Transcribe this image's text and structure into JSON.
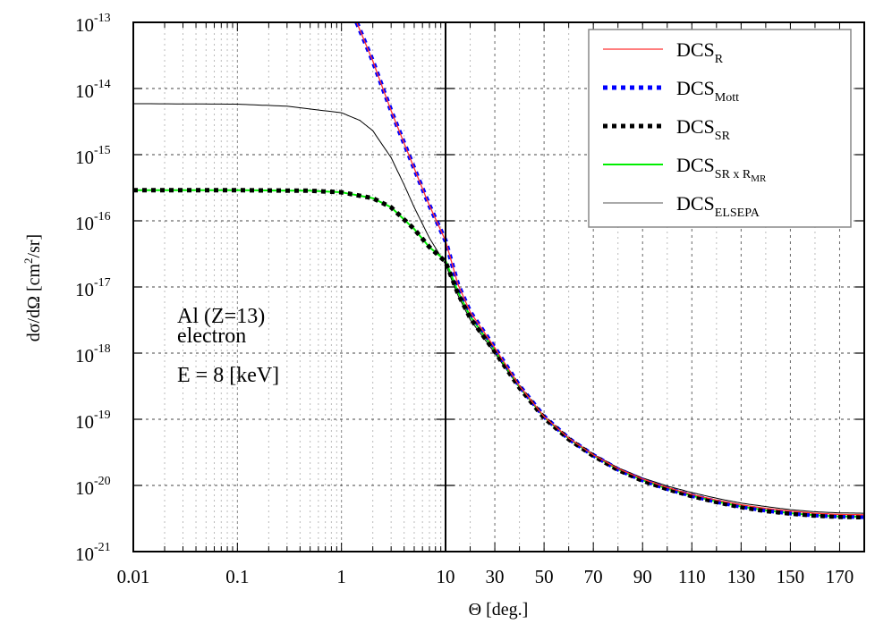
{
  "chart_data": {
    "type": "line",
    "title": "",
    "xlabel": "Θ [deg.]",
    "ylabel": "dσ/dΩ [cm²/sr]",
    "xscale": "log (0.01–10) + linear (10–180)",
    "yscale": "log",
    "xlim": [
      0.01,
      180
    ],
    "ylim": [
      1e-21,
      1e-13
    ],
    "grid": true,
    "legend_position": "upper right",
    "x_tick_labels": [
      "0.01",
      "0.1",
      "1",
      "10",
      "30",
      "50",
      "70",
      "90",
      "110",
      "130",
      "150",
      "170"
    ],
    "y_tick_labels": [
      {
        "base": "10",
        "exp": "-13"
      },
      {
        "base": "10",
        "exp": "-14"
      },
      {
        "base": "10",
        "exp": "-15"
      },
      {
        "base": "10",
        "exp": "-16"
      },
      {
        "base": "10",
        "exp": "-17"
      },
      {
        "base": "10",
        "exp": "-18"
      },
      {
        "base": "10",
        "exp": "-19"
      },
      {
        "base": "10",
        "exp": "-20"
      },
      {
        "base": "10",
        "exp": "-21"
      }
    ],
    "annotations": [
      "Al (Z=13)",
      "electron",
      "E = 8 [keV]"
    ],
    "series": [
      {
        "name": "DCS_R",
        "label_main": "DCS",
        "label_sub": "R",
        "color": "#ff3030",
        "style": "solid",
        "x": [
          1.4,
          2,
          3,
          5,
          7,
          10,
          15,
          20,
          30,
          40,
          50,
          60,
          70,
          80,
          90,
          100,
          110,
          120,
          130,
          140,
          150,
          160,
          170,
          180
        ],
        "values": [
          1e-13,
          2.6e-14,
          4.6e-15,
          6.2e-16,
          1.7e-16,
          5e-17,
          1.1e-17,
          4.2e-18,
          1.2e-18,
          3.2e-19,
          1.1e-19,
          5.2e-20,
          2.9e-20,
          1.8e-20,
          1.25e-20,
          9.3e-21,
          7.3e-21,
          6e-21,
          5.1e-21,
          4.5e-21,
          4.1e-21,
          3.8e-21,
          3.65e-21,
          3.6e-21
        ]
      },
      {
        "name": "DCS_Mott",
        "label_main": "DCS",
        "label_sub": "Mott",
        "color": "#0000ff",
        "style": "dotted",
        "x": [
          1.4,
          2,
          3,
          5,
          7,
          10,
          15,
          20,
          30,
          40,
          50,
          60,
          70,
          80,
          90,
          100,
          110,
          120,
          130,
          140,
          150,
          160,
          170,
          180
        ],
        "values": [
          1e-13,
          2.6e-14,
          4.6e-15,
          6.2e-16,
          1.7e-16,
          5e-17,
          1.1e-17,
          4.2e-18,
          1.2e-18,
          3.2e-19,
          1.1e-19,
          5.1e-20,
          2.85e-20,
          1.75e-20,
          1.2e-20,
          8.9e-21,
          7e-21,
          5.7e-21,
          4.8e-21,
          4.2e-21,
          3.8e-21,
          3.55e-21,
          3.4e-21,
          3.35e-21
        ]
      },
      {
        "name": "DCS_SR",
        "label_main": "DCS",
        "label_sub": "SR",
        "color": "#000000",
        "style": "dotted",
        "x": [
          0.01,
          0.1,
          0.5,
          1,
          2,
          3,
          5,
          7,
          10,
          15,
          20,
          30,
          40,
          50,
          60,
          70,
          80,
          90,
          100,
          110,
          120,
          130,
          140,
          150,
          160,
          170,
          180
        ],
        "values": [
          2.9e-16,
          2.9e-16,
          2.85e-16,
          2.7e-16,
          2.2e-16,
          1.6e-16,
          7.5e-17,
          4e-17,
          2.4e-17,
          8e-18,
          3.4e-18,
          1.05e-18,
          3e-19,
          1.05e-19,
          5e-20,
          2.8e-20,
          1.72e-20,
          1.18e-20,
          8.8e-21,
          6.9e-21,
          5.6e-21,
          4.7e-21,
          4.1e-21,
          3.75e-21,
          3.5e-21,
          3.35e-21,
          3.3e-21
        ]
      },
      {
        "name": "DCS_SR x R_MR",
        "label_main": "DCS",
        "label_sub": "SR x R",
        "label_subsub": "MR",
        "color": "#00ee00",
        "style": "solid",
        "x": [
          0.01,
          0.1,
          0.5,
          1,
          2,
          3,
          5,
          7,
          10,
          15,
          20,
          30,
          40,
          50,
          60,
          70,
          80,
          90,
          100,
          110,
          120,
          130,
          140,
          150,
          160,
          170,
          180
        ],
        "values": [
          2.9e-16,
          2.9e-16,
          2.85e-16,
          2.7e-16,
          2.2e-16,
          1.6e-16,
          7.5e-17,
          4e-17,
          2.5e-17,
          8.5e-18,
          3.6e-18,
          1.1e-18,
          3.1e-19,
          1.08e-19,
          5.1e-20,
          2.85e-20,
          1.75e-20,
          1.2e-20,
          8.9e-21,
          7e-21,
          5.7e-21,
          4.8e-21,
          4.2e-21,
          3.8e-21,
          3.55e-21,
          3.4e-21,
          3.35e-21
        ]
      },
      {
        "name": "DCS_ELSEPA",
        "label_main": "DCS",
        "label_sub": "ELSEPA",
        "color": "#000000",
        "style": "solid-thin",
        "x": [
          0.01,
          0.1,
          0.3,
          1,
          1.5,
          2,
          3,
          4,
          5,
          7,
          10,
          15,
          20,
          30,
          40,
          50,
          60,
          70,
          80,
          90,
          100,
          110,
          120,
          130,
          140,
          150,
          160,
          170,
          180
        ],
        "values": [
          5.9e-15,
          5.8e-15,
          5.4e-15,
          4.3e-15,
          3.3e-15,
          2.3e-15,
          9e-16,
          3.5e-16,
          1.6e-16,
          5.5e-17,
          2.2e-17,
          7.5e-18,
          3.2e-18,
          1e-18,
          3e-19,
          1.08e-19,
          5.2e-20,
          2.95e-20,
          1.85e-20,
          1.3e-20,
          9.8e-21,
          7.8e-21,
          6.4e-21,
          5.4e-21,
          4.8e-21,
          4.3e-21,
          4e-21,
          3.85e-21,
          3.8e-21
        ]
      }
    ]
  },
  "annotations": {
    "line1": "Al (Z=13)",
    "line2": "electron",
    "line3": "E = 8 [keV]"
  },
  "axes": {
    "xlabel": "Θ [deg.]",
    "ylabel_main": "dσ/dΩ [cm",
    "ylabel_sup": "2",
    "ylabel_end": "/sr]"
  }
}
